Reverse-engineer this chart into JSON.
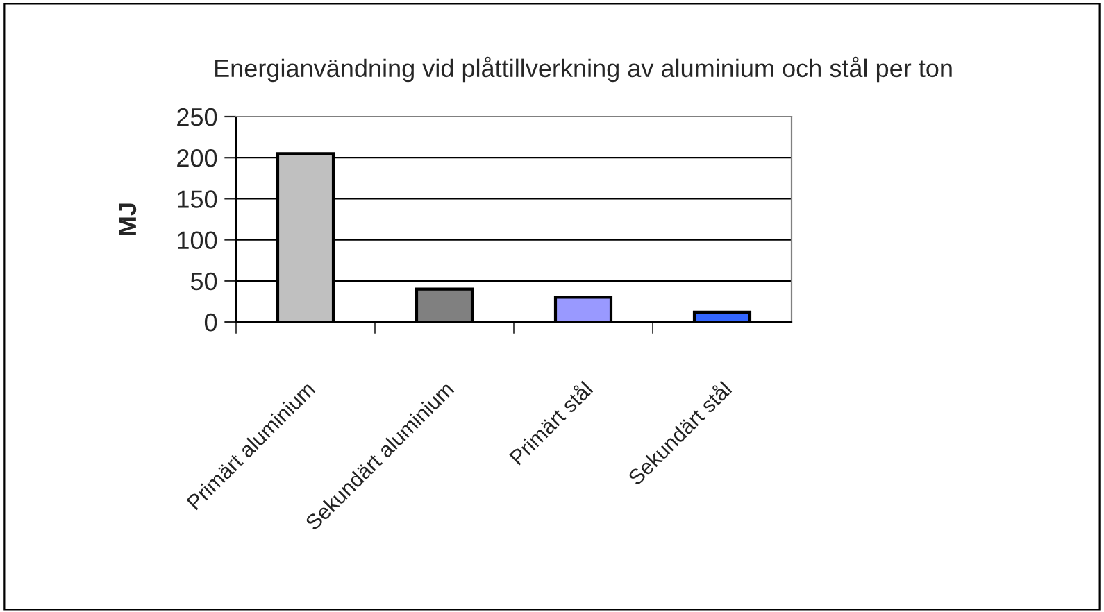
{
  "chart_data": {
    "type": "bar",
    "title": "Energianvändning vid plåttillverkning av aluminium och stål per ton",
    "ylabel": "MJ",
    "categories": [
      "Primärt aluminium",
      "Sekundärt aluminium",
      "Primärt stål",
      "Sekundärt stål"
    ],
    "values": [
      205,
      40,
      30,
      12
    ],
    "colors": [
      "#c0c0c0",
      "#808080",
      "#9999ff",
      "#3366ff"
    ],
    "ylim": [
      0,
      250
    ],
    "yticks": [
      0,
      50,
      100,
      150,
      200,
      250
    ],
    "grid": "y",
    "legend": false
  }
}
